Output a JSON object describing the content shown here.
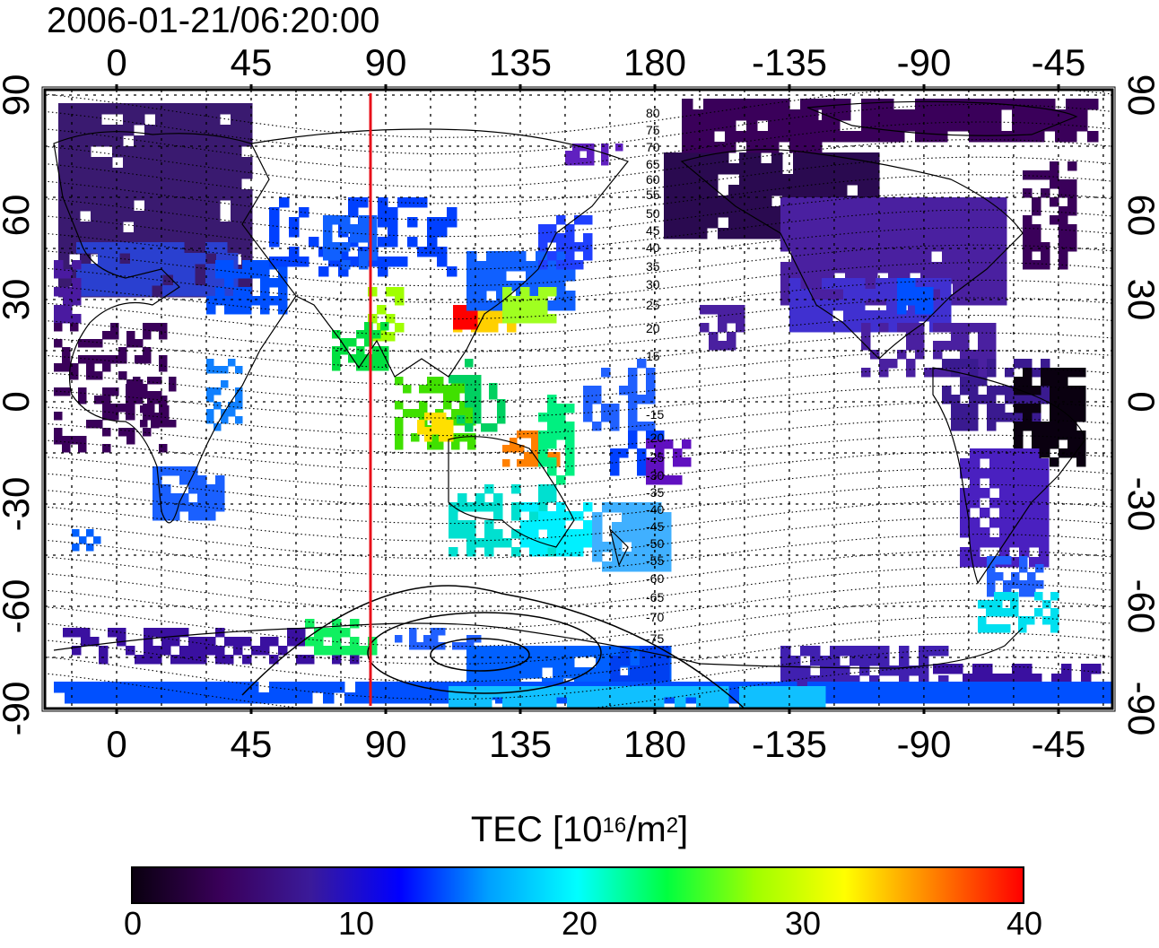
{
  "title": "2006-01-21/06:20:00",
  "map": {
    "lon_ticks_top": [
      "0",
      "45",
      "90",
      "135",
      "180",
      "-135",
      "-90",
      "-45"
    ],
    "lon_ticks_bottom": [
      "0",
      "45",
      "90",
      "135",
      "180",
      "-135",
      "-90",
      "-45"
    ],
    "lat_ticks_left": [
      "90",
      "60",
      "30",
      "0",
      "-30",
      "-60",
      "-90"
    ],
    "lat_ticks_right": [
      "90",
      "60",
      "30",
      "0",
      "-30",
      "-60",
      "-90"
    ],
    "contour_labels": [
      "80",
      "75",
      "70",
      "65",
      "60",
      "55",
      "50",
      "45",
      "40",
      "35",
      "30",
      "25",
      "20",
      "15",
      "-15",
      "-20",
      "-25",
      "-30",
      "-35",
      "-40",
      "-45",
      "-50",
      "-55",
      "-60",
      "-65",
      "-70",
      "-75"
    ],
    "meridian_marker_lon": 85,
    "marker_color": "#e8101a"
  },
  "colorbar": {
    "title": "TEC  [10",
    "title_exp1": "16",
    "title_mid": "/m",
    "title_exp2": "2",
    "title_end": "]",
    "ticks": [
      "0",
      "10",
      "20",
      "30",
      "40"
    ],
    "colors": [
      "#0a0010",
      "#3a005a",
      "#3a1a9a",
      "#0000ff",
      "#00a0ff",
      "#00ffff",
      "#00ff40",
      "#a0ff00",
      "#ffff00",
      "#ff8000",
      "#ff0000"
    ]
  }
}
